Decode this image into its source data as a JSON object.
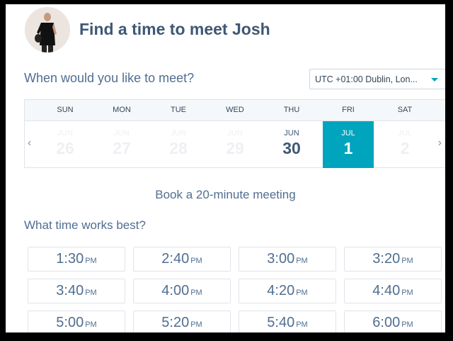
{
  "header": {
    "title": "Find a time to meet Josh",
    "avatar": "host-photo"
  },
  "question_date": "When would you like to meet?",
  "timezone": {
    "value": "UTC +01:00 Dublin, Lon..."
  },
  "calendar": {
    "days_of_week": [
      "SUN",
      "MON",
      "TUE",
      "WED",
      "THU",
      "FRI",
      "SAT"
    ],
    "dates": [
      {
        "month": "JUN",
        "day": "26",
        "state": "disabled"
      },
      {
        "month": "JUN",
        "day": "27",
        "state": "disabled"
      },
      {
        "month": "JUN",
        "day": "28",
        "state": "disabled"
      },
      {
        "month": "JUN",
        "day": "29",
        "state": "disabled"
      },
      {
        "month": "JUN",
        "day": "30",
        "state": "available"
      },
      {
        "month": "JUL",
        "day": "1",
        "state": "selected"
      },
      {
        "month": "JUL",
        "day": "2",
        "state": "disabled"
      }
    ],
    "prev_icon": "chevron-left",
    "next_icon": "chevron-right",
    "selected_color": "#00a4bd"
  },
  "meeting_label": "Book a 20-minute meeting",
  "question_time": "What time works best?",
  "slots": [
    {
      "time": "1:30",
      "ampm": "PM"
    },
    {
      "time": "2:40",
      "ampm": "PM"
    },
    {
      "time": "3:00",
      "ampm": "PM"
    },
    {
      "time": "3:20",
      "ampm": "PM"
    },
    {
      "time": "3:40",
      "ampm": "PM"
    },
    {
      "time": "4:00",
      "ampm": "PM"
    },
    {
      "time": "4:20",
      "ampm": "PM"
    },
    {
      "time": "4:40",
      "ampm": "PM"
    },
    {
      "time": "5:00",
      "ampm": "PM"
    },
    {
      "time": "5:20",
      "ampm": "PM"
    },
    {
      "time": "5:40",
      "ampm": "PM"
    },
    {
      "time": "6:00",
      "ampm": "PM"
    }
  ]
}
